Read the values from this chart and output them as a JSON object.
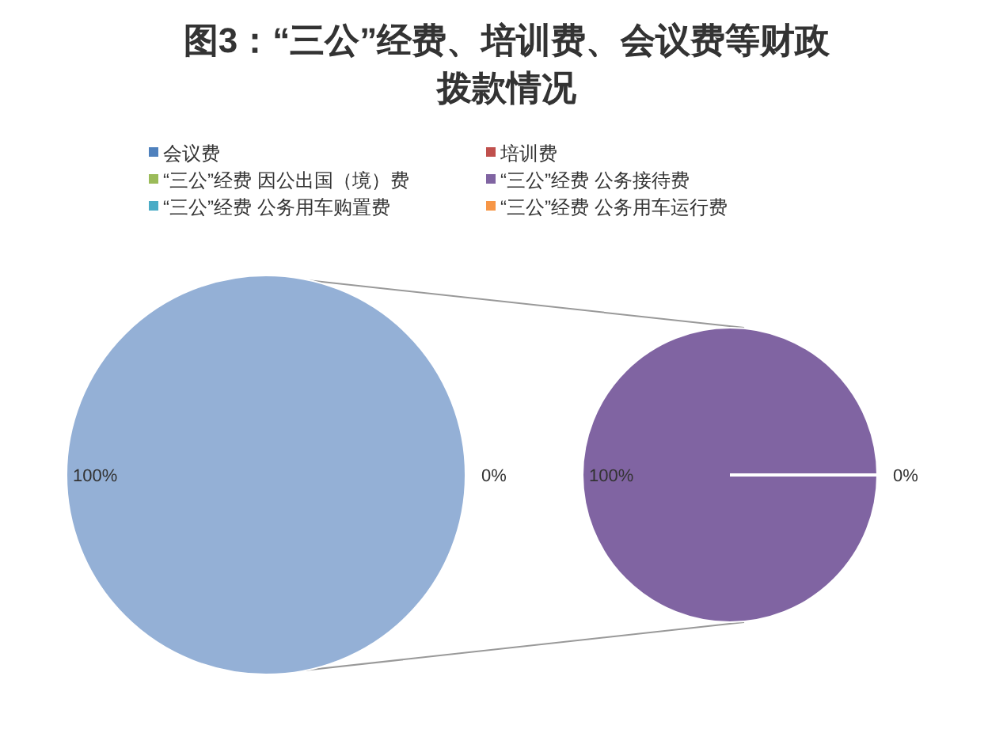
{
  "chart_data": [
    {
      "type": "other",
      "title": "图3：“三公”经费、培训费、会议费等财政拨款情况",
      "categories": [
        "会议费",
        "培训费",
        "“三公”经费 因公出国（境）费",
        "“三公”经费 公务接待费",
        "“三公”经费 公务用车购置费",
        "“三公”经费 公务用车运行费"
      ],
      "colors": [
        "#4f81bd",
        "#c0504d",
        "#9bbb59",
        "#8064a2",
        "#4bacc6",
        "#f79646"
      ]
    },
    {
      "type": "pie",
      "categories": [
        null,
        null
      ],
      "values": [
        100,
        0
      ],
      "colors": [
        "#94b0d6",
        "#4f81bd"
      ],
      "value_labels": [
        "100%",
        "0%"
      ]
    },
    {
      "type": "pie",
      "categories": [
        null,
        null
      ],
      "values": [
        100,
        0
      ],
      "colors": [
        "#8064a2",
        "#f79646"
      ],
      "value_labels": [
        "100%",
        "0%"
      ]
    }
  ]
}
